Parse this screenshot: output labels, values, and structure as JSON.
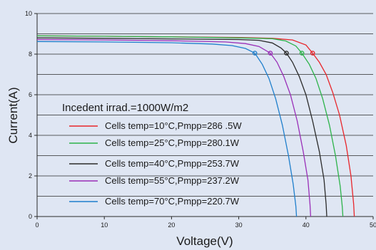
{
  "chart_data": {
    "type": "line",
    "title": "",
    "xlabel": "Voltage(V)",
    "ylabel": "Current(A)",
    "xlim": [
      0,
      50
    ],
    "ylim": [
      0,
      10
    ],
    "x_ticks": [
      0,
      10,
      20,
      30,
      40,
      50
    ],
    "y_ticks": [
      0,
      2,
      4,
      6,
      8,
      10
    ],
    "grid": "horizontal",
    "legend_position": "center-left",
    "legend_title": "Incedent irrad.=1000W/m2",
    "background_color": "#dfe6f3",
    "series": [
      {
        "name": "Cells temp=10°C,Pmpp=286 .5W",
        "color": "#e8262b",
        "points": [
          [
            0,
            8.9
          ],
          [
            10,
            8.88
          ],
          [
            20,
            8.85
          ],
          [
            30,
            8.82
          ],
          [
            35,
            8.78
          ],
          [
            38,
            8.7
          ],
          [
            40,
            8.45
          ],
          [
            41,
            8.05
          ],
          [
            42,
            7.6
          ],
          [
            43,
            7.0
          ],
          [
            44,
            6.1
          ],
          [
            45,
            5.0
          ],
          [
            46,
            3.5
          ],
          [
            46.7,
            2.0
          ],
          [
            47.1,
            0.6
          ],
          [
            47.2,
            0
          ]
        ],
        "mpp": [
          41,
          8.05
        ]
      },
      {
        "name": "Cells temp=25°C,Pmpp=280.1W",
        "color": "#2db34a",
        "points": [
          [
            0,
            8.9
          ],
          [
            10,
            8.88
          ],
          [
            20,
            8.85
          ],
          [
            30,
            8.8
          ],
          [
            35,
            8.76
          ],
          [
            37,
            8.65
          ],
          [
            38.5,
            8.4
          ],
          [
            39.4,
            8.05
          ],
          [
            40.5,
            7.5
          ],
          [
            41.5,
            6.8
          ],
          [
            42.5,
            5.8
          ],
          [
            43.5,
            4.5
          ],
          [
            44.4,
            3.0
          ],
          [
            45.1,
            1.5
          ],
          [
            45.4,
            0.5
          ],
          [
            45.5,
            0
          ]
        ],
        "mpp": [
          39.4,
          8.05
        ]
      },
      {
        "name": "Cells temp=40°C,Pmpp=253.7W",
        "color": "#2b2b2b",
        "points": [
          [
            0,
            8.8
          ],
          [
            10,
            8.78
          ],
          [
            20,
            8.75
          ],
          [
            30,
            8.72
          ],
          [
            33,
            8.68
          ],
          [
            35,
            8.55
          ],
          [
            36.3,
            8.3
          ],
          [
            37.1,
            8.05
          ],
          [
            38,
            7.6
          ],
          [
            39,
            6.9
          ],
          [
            40,
            6.0
          ],
          [
            41,
            4.7
          ],
          [
            42,
            3.2
          ],
          [
            42.7,
            1.8
          ],
          [
            43,
            0.6
          ],
          [
            43.1,
            0
          ]
        ],
        "mpp": [
          37.1,
          8.05
        ]
      },
      {
        "name": "Cells temp=55°C,Pmpp=237.2W",
        "color": "#9a2fb8",
        "points": [
          [
            0,
            8.72
          ],
          [
            10,
            8.7
          ],
          [
            20,
            8.66
          ],
          [
            28,
            8.6
          ],
          [
            31,
            8.52
          ],
          [
            33,
            8.38
          ],
          [
            34.7,
            8.05
          ],
          [
            35.7,
            7.6
          ],
          [
            36.7,
            6.9
          ],
          [
            37.7,
            6.0
          ],
          [
            38.7,
            4.7
          ],
          [
            39.6,
            3.2
          ],
          [
            40.3,
            1.8
          ],
          [
            40.6,
            0.6
          ],
          [
            40.7,
            0
          ]
        ],
        "mpp": [
          34.7,
          8.05
        ]
      },
      {
        "name": "Cells temp=70°C,Pmpp=220.7W",
        "color": "#1f7fcc",
        "points": [
          [
            0,
            8.62
          ],
          [
            10,
            8.6
          ],
          [
            20,
            8.56
          ],
          [
            26,
            8.5
          ],
          [
            29,
            8.42
          ],
          [
            31,
            8.28
          ],
          [
            32.4,
            8.05
          ],
          [
            33.5,
            7.5
          ],
          [
            34.5,
            6.8
          ],
          [
            35.5,
            5.8
          ],
          [
            36.5,
            4.5
          ],
          [
            37.4,
            3.0
          ],
          [
            38.1,
            1.6
          ],
          [
            38.5,
            0.5
          ],
          [
            38.6,
            0
          ]
        ],
        "mpp": [
          32.4,
          8.05
        ]
      }
    ]
  }
}
